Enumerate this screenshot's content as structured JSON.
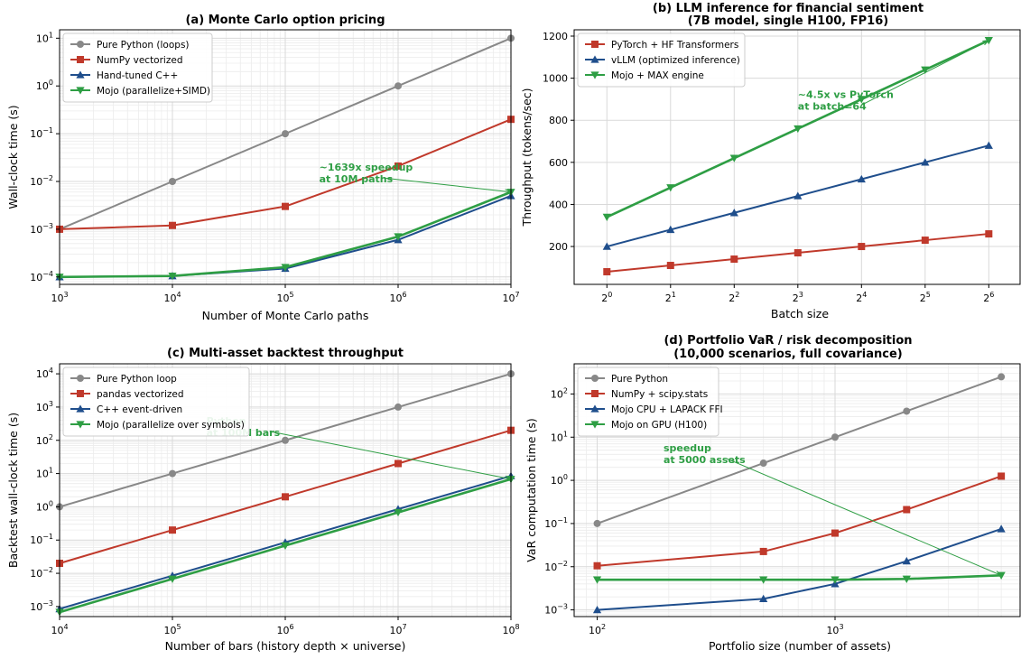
{
  "chart_data": [
    {
      "id": "a",
      "type": "line",
      "title": [
        "(a) Monte Carlo option pricing"
      ],
      "xlabel": "Number of Monte Carlo paths",
      "ylabel": "Wall-clock time (s)",
      "xscale": "log",
      "yscale": "log",
      "xlim": [
        1000,
        10000000
      ],
      "ylim": [
        7e-05,
        15
      ],
      "xticks": [
        1000,
        10000,
        100000,
        1000000,
        10000000
      ],
      "xticklabels": [
        [
          "10",
          "3"
        ],
        [
          "10",
          "4"
        ],
        [
          "10",
          "5"
        ],
        [
          "10",
          "6"
        ],
        [
          "10",
          "7"
        ]
      ],
      "yticks": [
        0.0001,
        0.001,
        0.01,
        0.1,
        1,
        10
      ],
      "yticklabels": [
        [
          "10",
          "−4"
        ],
        [
          "10",
          "−3"
        ],
        [
          "10",
          "−2"
        ],
        [
          "10",
          "−1"
        ],
        [
          "10",
          "0"
        ],
        [
          "10",
          "1"
        ]
      ],
      "grid": true,
      "legend_position": "upper-left",
      "series": [
        {
          "name": "Pure Python (loops)",
          "color": "#888888",
          "marker": "circle",
          "x": [
            1000,
            10000,
            100000,
            1000000,
            10000000
          ],
          "y": [
            0.001,
            0.01,
            0.1,
            1,
            10
          ]
        },
        {
          "name": "NumPy vectorized",
          "color": "#c0392b",
          "marker": "square",
          "x": [
            1000,
            10000,
            100000,
            1000000,
            10000000
          ],
          "y": [
            0.001,
            0.0012,
            0.003,
            0.021,
            0.2
          ]
        },
        {
          "name": "Hand-tuned C++",
          "color": "#1f4e8c",
          "marker": "triangle-up",
          "x": [
            1000,
            10000,
            100000,
            1000000,
            10000000
          ],
          "y": [
            0.0001,
            0.000105,
            0.00015,
            0.0006,
            0.005
          ]
        },
        {
          "name": "Mojo (parallelize+SIMD)",
          "color": "#2e9e44",
          "marker": "triangle-down",
          "x": [
            1000,
            10000,
            100000,
            1000000,
            10000000
          ],
          "y": [
            0.0001,
            0.000105,
            0.00016,
            0.0007,
            0.006
          ]
        }
      ],
      "annotations": [
        {
          "text": [
            "~1639x speedup",
            "at 10M paths"
          ],
          "at": [
            200000,
            0.013
          ],
          "point": [
            10000000,
            0.006
          ],
          "color": "#2e9e44"
        }
      ]
    },
    {
      "id": "b",
      "type": "line",
      "title": [
        "(b) LLM inference for financial sentiment",
        "(7B model, single H100, FP16)"
      ],
      "xlabel": "Batch size",
      "ylabel": "Throughput (tokens/sec)",
      "xscale": "log2",
      "yscale": "linear",
      "xlim": [
        0.7,
        90
      ],
      "ylim": [
        20,
        1230
      ],
      "xticks": [
        1,
        2,
        4,
        8,
        16,
        32,
        64
      ],
      "xticklabels": [
        [
          "2",
          "0"
        ],
        [
          "2",
          "1"
        ],
        [
          "2",
          "2"
        ],
        [
          "2",
          "3"
        ],
        [
          "2",
          "4"
        ],
        [
          "2",
          "5"
        ],
        [
          "2",
          "6"
        ]
      ],
      "yticks": [
        200,
        400,
        600,
        800,
        1000,
        1200
      ],
      "yticklabels": [
        [
          "200",
          ""
        ],
        [
          "400",
          ""
        ],
        [
          "600",
          ""
        ],
        [
          "800",
          ""
        ],
        [
          "1000",
          ""
        ],
        [
          "1200",
          ""
        ]
      ],
      "grid": true,
      "legend_position": "upper-left",
      "series": [
        {
          "name": "PyTorch + HF Transformers",
          "color": "#c0392b",
          "marker": "square",
          "x": [
            1,
            2,
            4,
            8,
            16,
            32,
            64
          ],
          "y": [
            80,
            110,
            140,
            170,
            200,
            230,
            260
          ]
        },
        {
          "name": "vLLM (optimized inference)",
          "color": "#1f4e8c",
          "marker": "triangle-up",
          "x": [
            1,
            2,
            4,
            8,
            16,
            32,
            64
          ],
          "y": [
            200,
            280,
            360,
            440,
            520,
            600,
            680
          ]
        },
        {
          "name": "Mojo + MAX engine",
          "color": "#2e9e44",
          "marker": "triangle-down",
          "x": [
            1,
            2,
            4,
            8,
            16,
            32,
            64
          ],
          "y": [
            340,
            480,
            620,
            760,
            900,
            1040,
            1180
          ]
        }
      ],
      "annotations": [
        {
          "text": [
            "~4.5x vs PyTorch",
            "at batch=64"
          ],
          "at": [
            8,
            880
          ],
          "point": [
            64,
            1180
          ],
          "color": "#2e9e44"
        }
      ]
    },
    {
      "id": "c",
      "type": "line",
      "title": [
        "(c) Multi-asset backtest throughput"
      ],
      "xlabel": "Number of bars (history depth × universe)",
      "ylabel": "Backtest wall-clock time (s)",
      "xscale": "log",
      "yscale": "log",
      "xlim": [
        10000,
        100000000
      ],
      "ylim": [
        0.0005,
        20000
      ],
      "xticks": [
        10000,
        100000,
        1000000,
        10000000,
        100000000
      ],
      "xticklabels": [
        [
          "10",
          "4"
        ],
        [
          "10",
          "5"
        ],
        [
          "10",
          "6"
        ],
        [
          "10",
          "7"
        ],
        [
          "10",
          "8"
        ]
      ],
      "yticks": [
        0.001,
        0.01,
        0.1,
        1,
        10,
        100,
        1000,
        10000
      ],
      "yticklabels": [
        [
          "10",
          "−3"
        ],
        [
          "10",
          "−2"
        ],
        [
          "10",
          "−1"
        ],
        [
          "10",
          "0"
        ],
        [
          "10",
          "1"
        ],
        [
          "10",
          "2"
        ],
        [
          "10",
          "3"
        ],
        [
          "10",
          "4"
        ]
      ],
      "grid": true,
      "legend_position": "upper-left",
      "series": [
        {
          "name": "Pure Python loop",
          "color": "#888888",
          "marker": "circle",
          "x": [
            10000,
            100000,
            1000000,
            10000000,
            100000000
          ],
          "y": [
            1,
            10,
            100,
            1000,
            10000
          ]
        },
        {
          "name": "pandas vectorized",
          "color": "#c0392b",
          "marker": "square",
          "x": [
            10000,
            100000,
            1000000,
            10000000,
            100000000
          ],
          "y": [
            0.02,
            0.2,
            2,
            20,
            200
          ]
        },
        {
          "name": "C++ event-driven",
          "color": "#1f4e8c",
          "marker": "triangle-up",
          "x": [
            10000,
            100000,
            1000000,
            10000000,
            100000000
          ],
          "y": [
            0.00085,
            0.0085,
            0.085,
            0.85,
            8.5
          ]
        },
        {
          "name": "Mojo (parallelize over symbols)",
          "color": "#2e9e44",
          "marker": "triangle-down",
          "x": [
            10000,
            100000,
            1000000,
            10000000,
            100000000
          ],
          "y": [
            0.00068,
            0.0068,
            0.068,
            0.68,
            6.8
          ]
        }
      ],
      "annotations": [
        {
          "text": [
            "Python",
            "at 100M bars"
          ],
          "at": [
            200000,
            210
          ],
          "point": [
            100000000,
            6.8
          ],
          "color": "#2e9e44"
        }
      ]
    },
    {
      "id": "d",
      "type": "line",
      "title": [
        "(d) Portfolio VaR / risk decomposition",
        "(10,000 scenarios, full covariance)"
      ],
      "xlabel": "Portfolio size (number of assets)",
      "ylabel": "VaR computation time (s)",
      "xscale": "log",
      "yscale": "log",
      "xlim": [
        80,
        6000
      ],
      "ylim": [
        0.0007,
        500
      ],
      "xticks": [
        100,
        1000
      ],
      "xticklabels": [
        [
          "10",
          "2"
        ],
        [
          "10",
          "3"
        ]
      ],
      "yticks": [
        0.001,
        0.01,
        0.1,
        1,
        10,
        100
      ],
      "yticklabels": [
        [
          "10",
          "−3"
        ],
        [
          "10",
          "−2"
        ],
        [
          "10",
          "−1"
        ],
        [
          "10",
          "0"
        ],
        [
          "10",
          "1"
        ],
        [
          "10",
          "2"
        ]
      ],
      "grid": true,
      "legend_position": "upper-left",
      "series": [
        {
          "name": "Pure Python",
          "color": "#888888",
          "marker": "circle",
          "x": [
            100,
            500,
            1000,
            2000,
            5000
          ],
          "y": [
            0.1,
            2.5,
            10,
            40,
            250
          ]
        },
        {
          "name": "NumPy + scipy.stats",
          "color": "#c0392b",
          "marker": "square",
          "x": [
            100,
            500,
            1000,
            2000,
            5000
          ],
          "y": [
            0.0105,
            0.0225,
            0.06,
            0.21,
            1.25
          ]
        },
        {
          "name": "Mojo CPU + LAPACK FFI",
          "color": "#1f4e8c",
          "marker": "triangle-up",
          "x": [
            100,
            500,
            1000,
            2000,
            5000
          ],
          "y": [
            0.001,
            0.0018,
            0.004,
            0.0135,
            0.075
          ]
        },
        {
          "name": "Mojo on GPU (H100)",
          "color": "#2e9e44",
          "marker": "triangle-down",
          "x": [
            100,
            500,
            1000,
            2000,
            5000
          ],
          "y": [
            0.005,
            0.005,
            0.005,
            0.0052,
            0.0063
          ]
        }
      ],
      "annotations": [
        {
          "text": [
            "speedup",
            "at 5000 assets"
          ],
          "at": [
            190,
            3.5
          ],
          "point": [
            5000,
            0.0063
          ],
          "color": "#2e9e44"
        }
      ]
    }
  ]
}
